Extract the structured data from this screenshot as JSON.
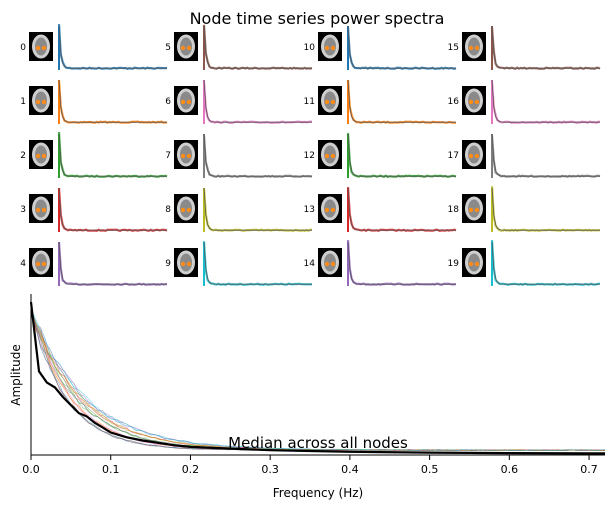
{
  "figure": {
    "title": "Node time series power spectra"
  },
  "chart_data": [
    {
      "type": "line",
      "description_role": "node-spectra-grid",
      "nodes": [
        {
          "id": "0",
          "color": "#1f77b4",
          "pct_blue": 0.0
        },
        {
          "id": "1",
          "color": "#ff7f0e"
        },
        {
          "id": "2",
          "color": "#2ca02c"
        },
        {
          "id": "3",
          "color": "#d62728"
        },
        {
          "id": "4",
          "color": "#9467bd"
        },
        {
          "id": "5",
          "color": "#8c564b"
        },
        {
          "id": "6",
          "color": "#e377c2"
        },
        {
          "id": "7",
          "color": "#7f7f7f"
        },
        {
          "id": "8",
          "color": "#bcbd22"
        },
        {
          "id": "9",
          "color": "#17becf"
        },
        {
          "id": "10",
          "color": "#1f77b4"
        },
        {
          "id": "11",
          "color": "#ff7f0e"
        },
        {
          "id": "12",
          "color": "#2ca02c"
        },
        {
          "id": "13",
          "color": "#d62728"
        },
        {
          "id": "14",
          "color": "#9467bd"
        },
        {
          "id": "15",
          "color": "#8c564b"
        },
        {
          "id": "16",
          "color": "#e377c2"
        },
        {
          "id": "17",
          "color": "#7f7f7f"
        },
        {
          "id": "18",
          "color": "#bcbd22"
        },
        {
          "id": "19",
          "color": "#17becf"
        }
      ],
      "xlim": [
        0,
        0.72
      ],
      "curve_shape": {
        "peak": 1.0,
        "decay_hz": 0.012,
        "floor": 0.04
      }
    },
    {
      "type": "line",
      "title": "Median across all nodes",
      "xlabel": "Frequency (Hz)",
      "ylabel": "Amplitude",
      "xlim": [
        0,
        0.72
      ],
      "ylim": [
        0,
        1.0
      ],
      "xticks": [
        0.0,
        0.1,
        0.2,
        0.3,
        0.4,
        0.5,
        0.6,
        0.7
      ],
      "xtick_labels": [
        "0.0",
        "0.1",
        "0.2",
        "0.3",
        "0.4",
        "0.5",
        "0.6",
        "0.7"
      ],
      "grid": false,
      "series": [
        {
          "role": "median",
          "color": "#000000",
          "x": [
            0.0,
            0.01,
            0.02,
            0.03,
            0.04,
            0.05,
            0.06,
            0.07,
            0.08,
            0.09,
            0.1,
            0.12,
            0.14,
            0.16,
            0.18,
            0.2,
            0.25,
            0.3,
            0.35,
            0.4,
            0.5,
            0.6,
            0.7,
            0.72
          ],
          "y": [
            0.95,
            0.52,
            0.45,
            0.42,
            0.36,
            0.31,
            0.26,
            0.24,
            0.2,
            0.17,
            0.14,
            0.11,
            0.09,
            0.075,
            0.06,
            0.05,
            0.04,
            0.03,
            0.025,
            0.02,
            0.015,
            0.012,
            0.01,
            0.01
          ]
        }
      ]
    }
  ]
}
